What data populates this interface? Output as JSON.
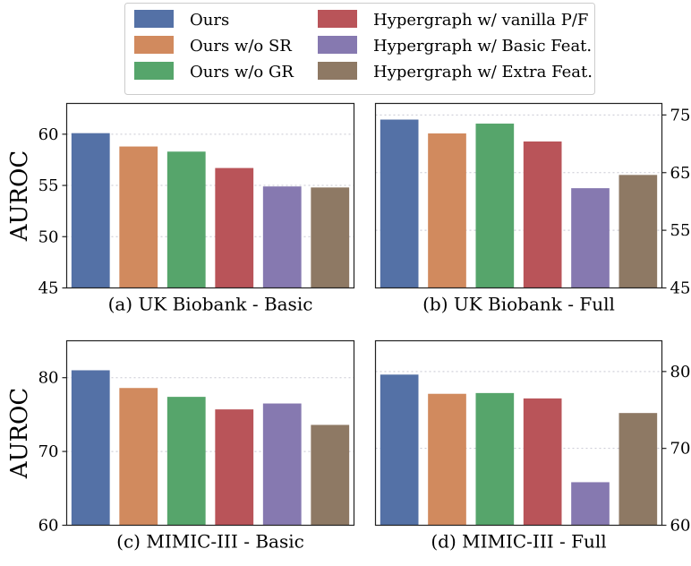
{
  "legend": [
    {
      "name": "Ours",
      "color": "#5471a6"
    },
    {
      "name": "Ours w/o SR",
      "color": "#d18a5e"
    },
    {
      "name": "Ours w/o GR",
      "color": "#56a56b"
    },
    {
      "name": "Hypergraph w/ vanilla P/F",
      "color": "#b95459"
    },
    {
      "name": "Hypergraph w/ Basic Feat.",
      "color": "#8679b0"
    },
    {
      "name": "Hypergraph w/ Extra Feat.",
      "color": "#8e7964"
    }
  ],
  "chart_data": [
    {
      "type": "bar",
      "title": "(a) UK Biobank - Basic",
      "ylabel": "AUROC",
      "ylim": [
        45,
        63
      ],
      "yticks": [
        45,
        50,
        55,
        60
      ],
      "yaxis_side": "left",
      "grid": true,
      "categories": [
        "Ours",
        "Ours w/o SR",
        "Ours w/o GR",
        "Hypergraph w/ vanilla P/F",
        "Hypergraph w/ Basic Feat.",
        "Hypergraph w/ Extra Feat."
      ],
      "values": [
        60.1,
        58.8,
        58.3,
        56.7,
        54.9,
        54.8
      ]
    },
    {
      "type": "bar",
      "title": "(b) UK Biobank - Full",
      "ylabel": "",
      "ylim": [
        45,
        77
      ],
      "yticks": [
        45,
        55,
        65,
        75
      ],
      "yaxis_side": "right",
      "grid": true,
      "categories": [
        "Ours",
        "Ours w/o SR",
        "Ours w/o GR",
        "Hypergraph w/ vanilla P/F",
        "Hypergraph w/ Basic Feat.",
        "Hypergraph w/ Extra Feat."
      ],
      "values": [
        74.2,
        71.8,
        73.5,
        70.4,
        62.3,
        64.6
      ]
    },
    {
      "type": "bar",
      "title": "(c) MIMIC-III - Basic",
      "ylabel": "AUROC",
      "ylim": [
        60,
        85
      ],
      "yticks": [
        60,
        70,
        80
      ],
      "yaxis_side": "left",
      "grid": true,
      "categories": [
        "Ours",
        "Ours w/o SR",
        "Ours w/o GR",
        "Hypergraph w/ vanilla P/F",
        "Hypergraph w/ Basic Feat.",
        "Hypergraph w/ Extra Feat."
      ],
      "values": [
        81.0,
        78.6,
        77.4,
        75.7,
        76.5,
        73.6
      ]
    },
    {
      "type": "bar",
      "title": "(d) MIMIC-III - Full",
      "ylabel": "",
      "ylim": [
        60,
        84
      ],
      "yticks": [
        60,
        70,
        80
      ],
      "yaxis_side": "right",
      "grid": true,
      "categories": [
        "Ours",
        "Ours w/o SR",
        "Ours w/o GR",
        "Hypergraph w/ vanilla P/F",
        "Hypergraph w/ Basic Feat.",
        "Hypergraph w/ Extra Feat."
      ],
      "values": [
        79.6,
        77.1,
        77.2,
        76.5,
        65.6,
        74.6
      ]
    }
  ]
}
